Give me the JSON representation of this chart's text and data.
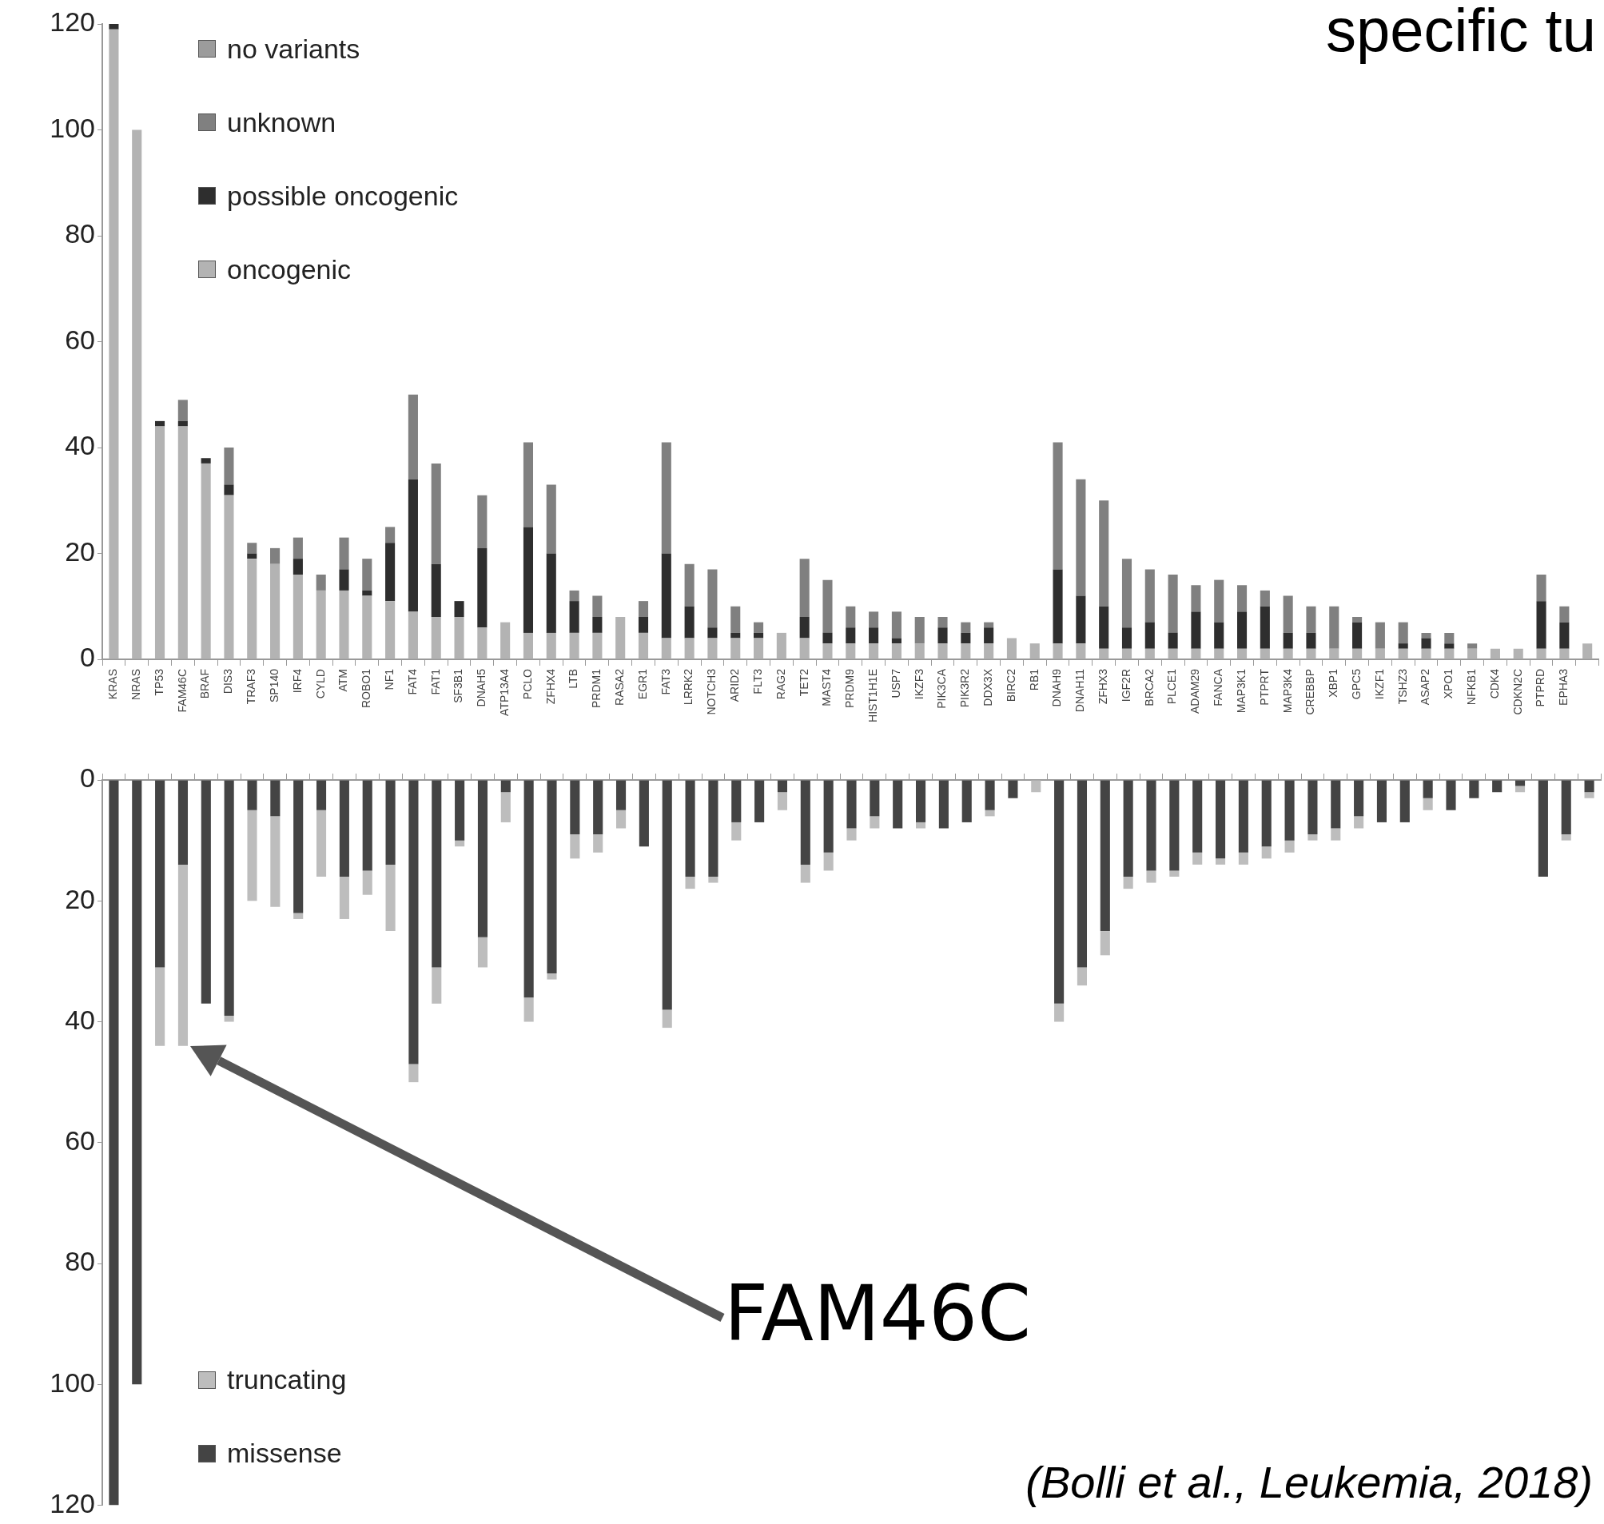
{
  "chart_data": [
    {
      "type": "bar",
      "title": "specific tu",
      "stacked": true,
      "legend": "top left",
      "ylim": [
        0,
        120
      ],
      "yticks": [
        0,
        20,
        40,
        60,
        80,
        100,
        120
      ],
      "categories": [
        "KRAS",
        "NRAS",
        "TP53",
        "FAM46C",
        "BRAF",
        "DIS3",
        "TRAF3",
        "SP140",
        "IRF4",
        "CYLD",
        "ATM",
        "ROBO1",
        "NF1",
        "FAT4",
        "FAT1",
        "SF3B1",
        "DNAH5",
        "ATP13A4",
        "PCLO",
        "ZFHX4",
        "LTB",
        "PRDM1",
        "RASA2",
        "EGR1",
        "FAT3",
        "LRRK2",
        "NOTCH3",
        "ARID2",
        "FLT3",
        "RAG2",
        "TET2",
        "MAST4",
        "PRDM9",
        "HIST1H1E",
        "USP7",
        "IKZF3",
        "PIK3CA",
        "PIK3R2",
        "DDX3X",
        "BIRC2",
        "RB1",
        "DNAH9",
        "DNAH11",
        "ZFHX3",
        "IGF2R",
        "BRCA2",
        "PLCE1",
        "ADAM29",
        "FANCA",
        "MAP3K1",
        "PTPRT",
        "MAP3K4",
        "CREBBP",
        "XBP1",
        "GPC5",
        "IKZF1",
        "TSHZ3",
        "ASAP2",
        "XPO1",
        "NFKB1",
        "CDK4",
        "CDKN2C",
        "PTPRD",
        "EPHA3",
        null
      ],
      "series": [
        {
          "name": "oncogenic",
          "color": "#b3b3b3",
          "values": [
            119,
            100,
            44,
            44,
            37,
            31,
            19,
            18,
            16,
            13,
            13,
            12,
            11,
            9,
            8,
            8,
            6,
            7,
            5,
            5,
            5,
            5,
            8,
            5,
            4,
            4,
            4,
            4,
            4,
            5,
            4,
            3,
            3,
            3,
            3,
            3,
            3,
            3,
            3,
            4,
            3,
            3,
            3,
            2,
            2,
            2,
            2,
            2,
            2,
            2,
            2,
            2,
            2,
            2,
            2,
            2,
            2,
            2,
            2,
            2,
            2,
            2,
            2,
            2,
            3
          ]
        },
        {
          "name": "possible oncogenic",
          "color": "#2e2e2e",
          "values": [
            1,
            0,
            1,
            1,
            1,
            2,
            1,
            0,
            3,
            0,
            4,
            1,
            11,
            25,
            10,
            3,
            15,
            0,
            20,
            15,
            6,
            3,
            0,
            3,
            16,
            6,
            2,
            1,
            1,
            0,
            4,
            2,
            3,
            3,
            1,
            0,
            3,
            2,
            3,
            0,
            0,
            14,
            9,
            8,
            4,
            5,
            3,
            7,
            5,
            7,
            8,
            3,
            3,
            0,
            5,
            0,
            1,
            2,
            1,
            0,
            0,
            0,
            9,
            5,
            0
          ]
        },
        {
          "name": "unknown",
          "color": "#808080",
          "values": [
            0,
            0,
            0,
            4,
            0,
            7,
            2,
            3,
            4,
            3,
            6,
            6,
            3,
            16,
            19,
            0,
            10,
            0,
            16,
            13,
            2,
            4,
            0,
            3,
            21,
            8,
            11,
            5,
            2,
            0,
            11,
            10,
            4,
            3,
            5,
            5,
            2,
            2,
            1,
            0,
            0,
            24,
            22,
            20,
            13,
            10,
            11,
            5,
            8,
            5,
            3,
            7,
            5,
            8,
            1,
            5,
            4,
            1,
            2,
            1,
            0,
            0,
            5,
            3,
            0
          ]
        },
        {
          "name": "no variants",
          "color": "#9c9c9c",
          "values": [
            0,
            0,
            0,
            0,
            0,
            0,
            0,
            0,
            0,
            0,
            0,
            0,
            0,
            0,
            0,
            0,
            0,
            0,
            0,
            0,
            0,
            0,
            0,
            0,
            0,
            0,
            0,
            0,
            0,
            0,
            0,
            0,
            0,
            0,
            0,
            0,
            0,
            0,
            0,
            0,
            0,
            0,
            0,
            0,
            0,
            0,
            0,
            0,
            0,
            0,
            0,
            0,
            0,
            0,
            0,
            0,
            0,
            0,
            0,
            0,
            0,
            0,
            0,
            0,
            0
          ]
        }
      ]
    },
    {
      "type": "bar",
      "stacked": true,
      "legend": "bottom left",
      "tick_labels": "y",
      "ylim": [
        120,
        0
      ],
      "yticks": [
        0,
        20,
        40,
        60,
        80,
        100,
        120
      ],
      "categories": [
        "KRAS",
        "NRAS",
        "TP53",
        "FAM46C",
        "BRAF",
        "DIS3",
        "TRAF3",
        "SP140",
        "IRF4",
        "CYLD",
        "ATM",
        "ROBO1",
        "NF1",
        "FAT4",
        "FAT1",
        "SF3B1",
        "DNAH5",
        "ATP13A4",
        "PCLO",
        "ZFHX4",
        "LTB",
        "PRDM1",
        "RASA2",
        "EGR1",
        "FAT3",
        "LRRK2",
        "NOTCH3",
        "ARID2",
        "FLT3",
        "RAG2",
        "TET2",
        "MAST4",
        "PRDM9",
        "HIST1H1E",
        "USP7",
        "IKZF3",
        "PIK3CA",
        "PIK3R2",
        "DDX3X",
        "BIRC2",
        "RB1",
        "DNAH9",
        "DNAH11",
        "ZFHX3",
        "IGF2R",
        "BRCA2",
        "PLCE1",
        "ADAM29",
        "FANCA",
        "MAP3K1",
        "PTPRT",
        "MAP3K4",
        "CREBBP",
        "XBP1",
        "GPC5",
        "IKZF1",
        "TSHZ3",
        "ASAP2",
        "XPO1",
        "NFKB1",
        "CDK4",
        "CDKN2C",
        "PTPRD",
        "EPHA3",
        null
      ],
      "series": [
        {
          "name": "missense",
          "color": "#444444",
          "values": [
            120,
            100,
            31,
            14,
            37,
            39,
            5,
            6,
            22,
            5,
            16,
            15,
            14,
            47,
            31,
            10,
            26,
            2,
            36,
            32,
            9,
            9,
            5,
            11,
            38,
            16,
            16,
            7,
            7,
            2,
            14,
            12,
            8,
            6,
            8,
            7,
            8,
            7,
            5,
            3,
            0,
            37,
            31,
            25,
            16,
            15,
            15,
            12,
            13,
            12,
            11,
            10,
            9,
            8,
            6,
            7,
            7,
            3,
            5,
            3,
            2,
            1,
            16,
            9,
            2
          ]
        },
        {
          "name": "truncating",
          "color": "#bdbdbd",
          "values": [
            0,
            0,
            13,
            30,
            0,
            1,
            15,
            15,
            1,
            11,
            7,
            4,
            11,
            3,
            6,
            1,
            5,
            5,
            4,
            1,
            4,
            3,
            3,
            0,
            3,
            2,
            1,
            3,
            0,
            3,
            3,
            3,
            2,
            2,
            0,
            1,
            0,
            0,
            1,
            0,
            2,
            3,
            3,
            4,
            2,
            2,
            1,
            2,
            1,
            2,
            2,
            2,
            1,
            2,
            2,
            0,
            0,
            2,
            0,
            0,
            0,
            1,
            0,
            1,
            1
          ]
        }
      ],
      "annotations": [
        "FAM46C",
        "(Bolli et al., Leukemia, 2018)"
      ]
    }
  ]
}
